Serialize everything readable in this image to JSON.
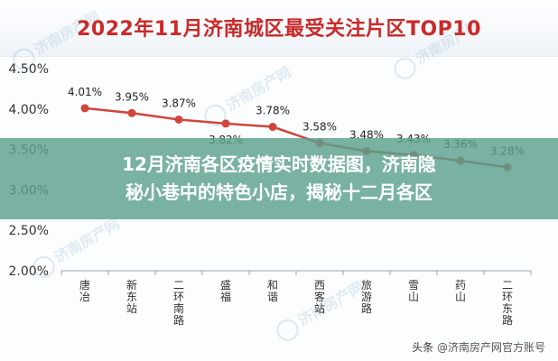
{
  "chart_data": {
    "type": "line",
    "title": "2022年11月济南城区最受关注片区TOP10",
    "categories": [
      "唐冶",
      "新东站",
      "二环南路",
      "盛福",
      "和谐",
      "西客站",
      "旅游路",
      "雪山",
      "药山",
      "二环东路"
    ],
    "series": [
      {
        "values": [
          4.01,
          3.95,
          3.87,
          3.82,
          3.78,
          3.58,
          3.48,
          3.43,
          3.36,
          3.28
        ]
      }
    ],
    "data_labels": [
      "4.01%",
      "3.95%",
      "3.87%",
      "3.82%",
      "3.78%",
      "3.58%",
      "3.48%",
      "3.43%",
      "3.36%",
      "3.28%"
    ],
    "y_ticks": [
      "2.00%",
      "2.50%",
      "3.00%",
      "3.50%",
      "4.00%",
      "4.50%"
    ],
    "y_tick_values": [
      2.0,
      2.5,
      3.0,
      3.5,
      4.0,
      4.5
    ],
    "ylim": [
      2.0,
      4.5
    ],
    "grid": false,
    "legend": "none",
    "line_color": "#d0463c",
    "title_color": "#c92a2a"
  },
  "overlay": {
    "line1": "12月济南各区疫情实时数据图，济南隐",
    "line2": "秘小巷中的特色小店，揭秘十二月各区"
  },
  "attribution": {
    "prefix": "头条",
    "source": "@济南房产网官方账号"
  },
  "watermark_text": "济南房产网"
}
